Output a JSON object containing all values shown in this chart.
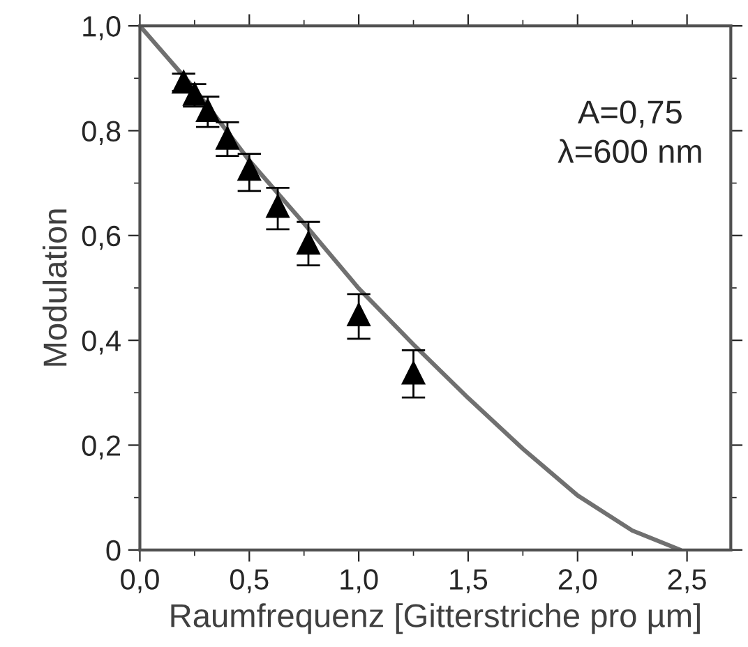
{
  "chart_data": {
    "type": "scatter",
    "xlabel": "Raumfrequenz [Gitterstriche pro µm]",
    "ylabel": "Modulation",
    "xlim": [
      0,
      2.7
    ],
    "ylim": [
      0,
      1
    ],
    "xticks": [
      {
        "value": 0,
        "label": "0,0"
      },
      {
        "value": 0.5,
        "label": "0,5"
      },
      {
        "value": 1,
        "label": "1,0"
      },
      {
        "value": 1.5,
        "label": "1,5"
      },
      {
        "value": 2,
        "label": "2,0"
      },
      {
        "value": 2.5,
        "label": "2,5"
      }
    ],
    "yticks": [
      {
        "value": 0,
        "label": "0"
      },
      {
        "value": 0.2,
        "label": "0,2"
      },
      {
        "value": 0.4,
        "label": "0,4"
      },
      {
        "value": 0.6,
        "label": "0,6"
      },
      {
        "value": 0.8,
        "label": "0,8"
      },
      {
        "value": 1,
        "label": "1,0"
      }
    ],
    "grid": false,
    "annotations": [
      "A=0,75",
      "λ=600 nm"
    ],
    "series": [
      {
        "type": "line",
        "color": "#707070",
        "marker": "none",
        "line_style": "solid",
        "x": [
          0,
          0.125,
          0.25,
          0.5,
          0.75,
          1.0,
          1.25,
          1.5,
          1.75,
          2.0,
          2.25,
          2.47
        ],
        "values": [
          1,
          0.94,
          0.88,
          0.743,
          0.623,
          0.499,
          0.392,
          0.29,
          0.193,
          0.104,
          0.037,
          0
        ]
      },
      {
        "color": "#000000",
        "marker": "triangle",
        "x": [
          0.2,
          0.25,
          0.31,
          0.4,
          0.5,
          0.63,
          0.77,
          1.0,
          1.25
        ],
        "values": [
          0.894,
          0.871,
          0.84,
          0.787,
          0.728,
          0.657,
          0.587,
          0.45,
          0.339
        ],
        "errors": [
          [
            0.876,
            0.909
          ],
          [
            0.846,
            0.889
          ],
          [
            0.807,
            0.865
          ],
          [
            0.752,
            0.816
          ],
          [
            0.685,
            0.756
          ],
          [
            0.612,
            0.691
          ],
          [
            0.543,
            0.626
          ],
          [
            0.403,
            0.488
          ],
          [
            0.291,
            0.381
          ]
        ]
      }
    ]
  }
}
